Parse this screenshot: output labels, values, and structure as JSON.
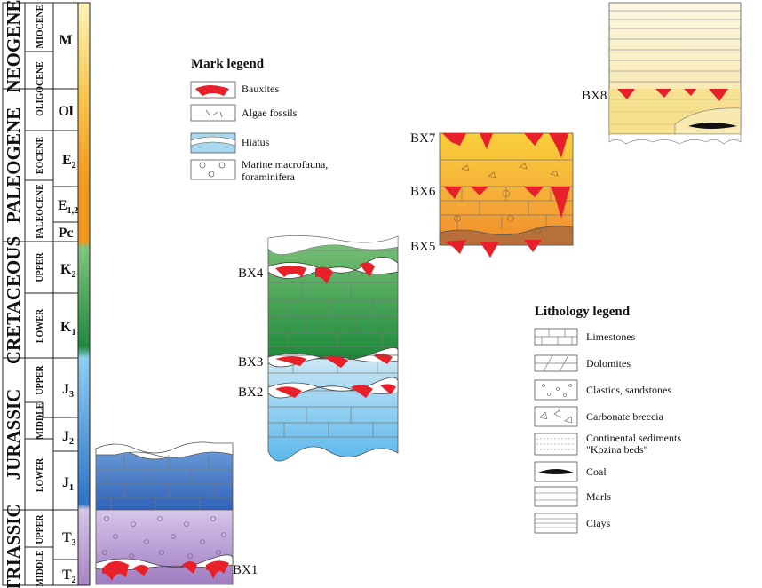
{
  "periods": [
    {
      "name": "NEOGENE"
    },
    {
      "name": "PALEOGENE"
    },
    {
      "name": "CRETACEOUS"
    },
    {
      "name": "JURASSIC"
    },
    {
      "name": "TRIASSIC"
    }
  ],
  "epochs": [
    "MIOCENE",
    "OLIGOCENE",
    "EOCENE",
    "PALEOCENE",
    "UPPER",
    "LOWER",
    "UPPER",
    "MIDDLE",
    "LOWER",
    "UPPER",
    "MIDDLE"
  ],
  "stages": {
    "M": "M",
    "Ol": "Ol",
    "E": "E",
    "E2_sub": "2",
    "E12_sub": "1,2",
    "Pc": "Pc",
    "K": "K",
    "K2_sub": "2",
    "K1_sub": "1",
    "J": "J",
    "J3_sub": "3",
    "J2_sub": "2",
    "J1_sub": "1",
    "T": "T",
    "T3_sub": "3",
    "T2_sub": "2"
  },
  "bauxite_labels": [
    "BX1",
    "BX2",
    "BX3",
    "BX4",
    "BX5",
    "BX6",
    "BX7",
    "BX8"
  ],
  "mark_legend": {
    "title": "Mark legend",
    "items": [
      "Bauxites",
      "Algae fossils",
      "Hiatus",
      "Marine macrofauna,",
      "foraminifera"
    ]
  },
  "lithology_legend": {
    "title": "Lithology legend",
    "items": [
      "Limestones",
      "Dolomites",
      "Clastics, sandstones",
      "Carbonate breccia",
      "Continental sediments",
      "\"Kozina beds\"",
      "Coal",
      "Marls",
      "Clays"
    ]
  },
  "colors": {
    "bauxite": "#e8202a",
    "neogene_yellow": "#f6e9a8",
    "paleogene_orange": "#f4a640",
    "cretaceous_green": "#3fa04a",
    "jurassic_blue": "#5aa8e0",
    "triassic_purple": "#a98bc4",
    "lower_jurassic_blue": "#3f76c4"
  }
}
